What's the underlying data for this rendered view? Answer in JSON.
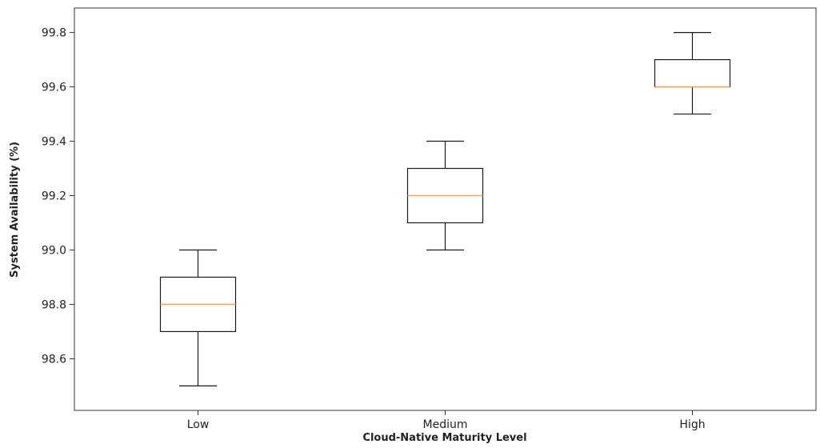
{
  "chart_data": {
    "type": "box",
    "title": "",
    "xlabel": "Cloud-Native Maturity Level",
    "ylabel": "System Availability (%)",
    "categories": [
      "Low",
      "Medium",
      "High"
    ],
    "boxes": [
      {
        "category": "Low",
        "whisker_low": 98.5,
        "q1": 98.7,
        "median": 98.8,
        "q3": 98.9,
        "whisker_high": 99.0
      },
      {
        "category": "Medium",
        "whisker_low": 99.0,
        "q1": 99.1,
        "median": 99.2,
        "q3": 99.3,
        "whisker_high": 99.4
      },
      {
        "category": "High",
        "whisker_low": 99.5,
        "q1": 99.6,
        "median": 99.6,
        "q3": 99.7,
        "whisker_high": 99.8
      }
    ],
    "ylim": [
      98.41,
      99.89
    ],
    "yticks": [
      98.6,
      98.8,
      99.0,
      99.2,
      99.4,
      99.6,
      99.8
    ],
    "ytick_labels": [
      "98.6",
      "98.8",
      "99.0",
      "99.2",
      "99.4",
      "99.6",
      "99.8"
    ],
    "grid": false,
    "legend": "none",
    "colors": {
      "box": "#1a1a1a",
      "median": "#f5a65b",
      "axis": "#333333"
    }
  }
}
